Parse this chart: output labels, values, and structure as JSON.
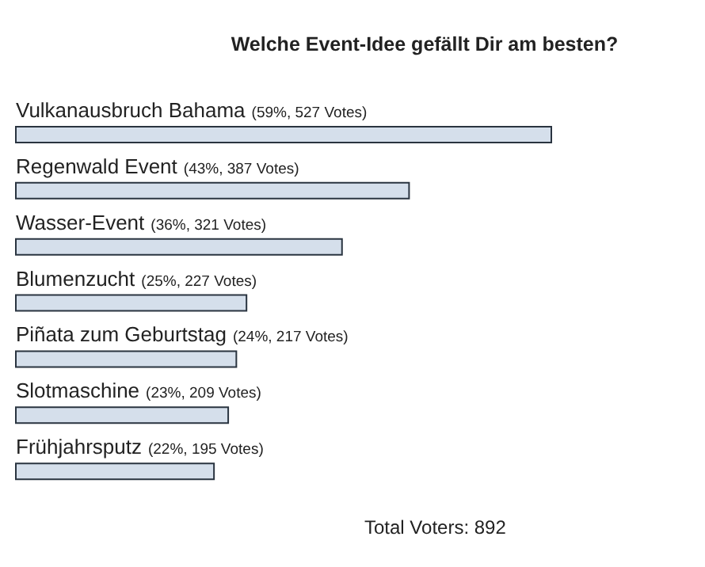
{
  "chart_data": {
    "type": "bar",
    "orientation": "horizontal",
    "title": "Welche Event-Idee gefällt Dir am besten?",
    "categories": [
      "Vulkanausbruch Bahama",
      "Regenwald Event",
      "Wasser-Event",
      "Blumenzucht",
      "Piñata zum Geburtstag",
      "Slotmaschine",
      "Frühjahrsputz"
    ],
    "values": [
      527,
      387,
      321,
      227,
      217,
      209,
      195
    ],
    "value_labels": [
      "(59%, 527 Votes)",
      "(43%, 387 Votes)",
      "(36%, 321 Votes)",
      "(25%, 227 Votes)",
      "(24%, 217 Votes)",
      "(23%, 209 Votes)",
      "(22%, 195 Votes)"
    ],
    "color": "#d5dfeb",
    "annotations": [
      "Total Voters: 892"
    ],
    "grid": false,
    "legend": false
  }
}
